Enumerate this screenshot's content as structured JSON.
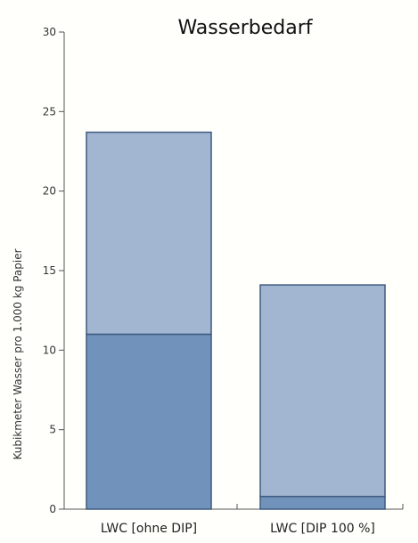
{
  "chart_data": {
    "type": "bar",
    "stacked": true,
    "title": "Wasserbedarf",
    "xlabel": "",
    "ylabel": "Kubikmeter Wasser pro 1.000 kg Papier",
    "ylim": [
      0,
      30
    ],
    "yticks": [
      "0",
      "5",
      "10",
      "15",
      "20",
      "25",
      "30"
    ],
    "categories": [
      "LWC [ohne DIP]",
      "LWC [DIP 100 %]"
    ],
    "series": [
      {
        "values": [
          11,
          0.8
        ],
        "color": "#7193bb"
      },
      {
        "values": [
          12.7,
          13.3
        ],
        "color": "#a2b6d2"
      }
    ],
    "edge_color": "#3f5a80",
    "grid": false,
    "legend": "none"
  }
}
